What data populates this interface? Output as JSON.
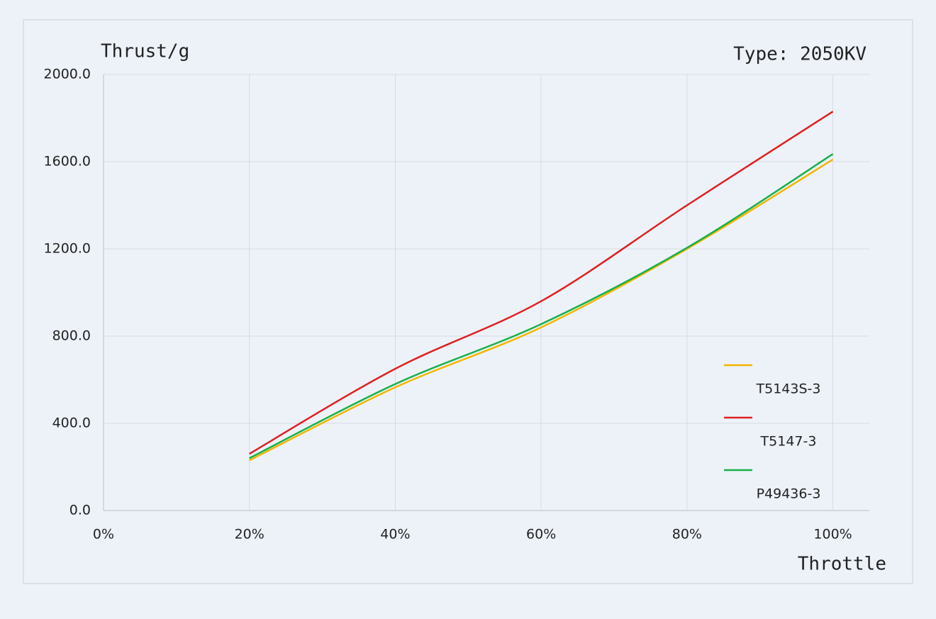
{
  "chart_data": {
    "type": "line",
    "y_label": "Thrust/g",
    "annotation": "Type: 2050KV",
    "x_label": "Throttle",
    "x": [
      20,
      40,
      60,
      80,
      100
    ],
    "series": [
      {
        "name": "T5143S-3",
        "color": "#f2b500",
        "values": [
          230,
          565,
          840,
          1200,
          1610
        ]
      },
      {
        "name": "T5147-3",
        "color": "#e02020",
        "values": [
          260,
          650,
          960,
          1400,
          1830
        ]
      },
      {
        "name": "P49436-3",
        "color": "#18b04a",
        "values": [
          240,
          580,
          855,
          1205,
          1635
        ]
      }
    ],
    "xlim": [
      0,
      105
    ],
    "xticks": [
      {
        "value": 0,
        "label": "0%"
      },
      {
        "value": 20,
        "label": "20%"
      },
      {
        "value": 40,
        "label": "40%"
      },
      {
        "value": 60,
        "label": "60%"
      },
      {
        "value": 80,
        "label": "80%"
      },
      {
        "value": 100,
        "label": "100%"
      }
    ],
    "ylim": [
      0,
      2000
    ],
    "yticks": [
      {
        "value": 0,
        "label": "0.0"
      },
      {
        "value": 400,
        "label": "400.0"
      },
      {
        "value": 800,
        "label": "800.0"
      },
      {
        "value": 1200,
        "label": "1200.0"
      },
      {
        "value": 1600,
        "label": "1600.0"
      },
      {
        "value": 2000,
        "label": "2000.0"
      }
    ],
    "grid": true,
    "legend": "right"
  }
}
